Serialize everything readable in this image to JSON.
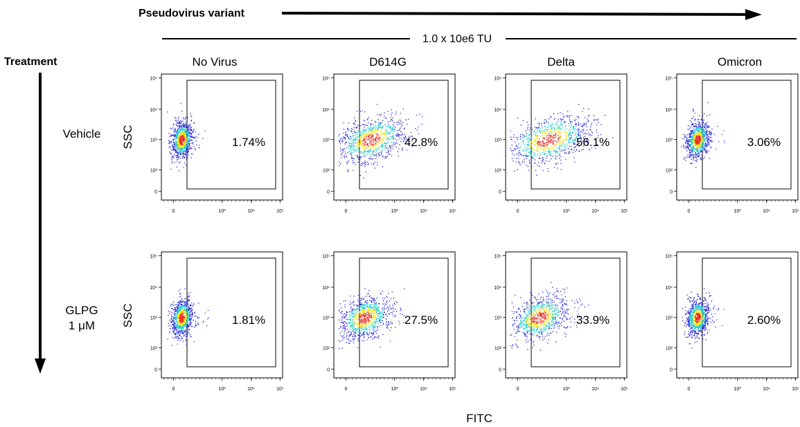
{
  "header": {
    "variant_label": "Pseudovirus variant",
    "dose_label": "1.0 x 10e6 TU"
  },
  "treatment_label": "Treatment",
  "columns": [
    "No Virus",
    "D614G",
    "Delta",
    "Omicron"
  ],
  "rows": [
    {
      "label_lines": [
        "Vehicle"
      ]
    },
    {
      "label_lines": [
        "GLPG",
        "1 μM"
      ]
    }
  ],
  "y_axis_label": "SSC",
  "x_axis_label": "FITC",
  "colors": {
    "density_low": "#1f1fd6",
    "density_mid": "#19c8c8",
    "density_high": "#f2e20c",
    "density_peak": "#e8281e"
  },
  "chart_data": {
    "type": "scatter",
    "subtype": "flow-cytometry-density-plot",
    "x_axis": {
      "label": "FITC",
      "scale": "biexponential",
      "ticks": [
        "0",
        "10³",
        "10⁴",
        "10⁵"
      ]
    },
    "y_axis": {
      "label": "SSC",
      "scale": "biexponential",
      "ticks": [
        "0",
        "10²",
        "10³",
        "10⁴",
        "10⁵"
      ]
    },
    "panels": [
      {
        "row": "Vehicle",
        "column": "No Virus",
        "gate_percent": "1.74%",
        "positive_fraction": 0.0174
      },
      {
        "row": "Vehicle",
        "column": "D614G",
        "gate_percent": "42.8%",
        "positive_fraction": 0.428
      },
      {
        "row": "Vehicle",
        "column": "Delta",
        "gate_percent": "56.1%",
        "positive_fraction": 0.561
      },
      {
        "row": "Vehicle",
        "column": "Omicron",
        "gate_percent": "3.06%",
        "positive_fraction": 0.0306
      },
      {
        "row": "GLPG 1 μM",
        "column": "No Virus",
        "gate_percent": "1.81%",
        "positive_fraction": 0.0181
      },
      {
        "row": "GLPG 1 μM",
        "column": "D614G",
        "gate_percent": "27.5%",
        "positive_fraction": 0.275
      },
      {
        "row": "GLPG 1 μM",
        "column": "Delta",
        "gate_percent": "33.9%",
        "positive_fraction": 0.339
      },
      {
        "row": "GLPG 1 μM",
        "column": "Omicron",
        "gate_percent": "2.60%",
        "positive_fraction": 0.026
      }
    ]
  }
}
